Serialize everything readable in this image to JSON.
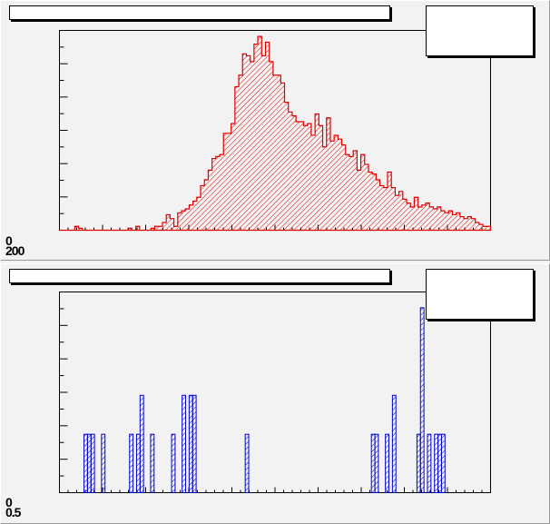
{
  "colors": {
    "top_series": "#e00000",
    "bottom_series": "#0000cc",
    "frame": "#000000",
    "pad_background": "#f2f2f2"
  },
  "pads": [
    {
      "title": "",
      "stats": "",
      "axis_labels": [
        "0",
        "200"
      ]
    },
    {
      "title": "",
      "stats": "",
      "axis_labels": [
        "0",
        "0.5"
      ]
    }
  ],
  "chart_data": [
    {
      "type": "bar",
      "title": "",
      "fill_pattern": "diagonal-hatch",
      "color": "#e00000",
      "ylim": [
        0,
        1
      ],
      "values": [
        0,
        0,
        0,
        0,
        0.02,
        0.01,
        0,
        0,
        0,
        0,
        0,
        0,
        0,
        0,
        0,
        0,
        0,
        0,
        0.01,
        0,
        0.02,
        0,
        0,
        0,
        0.01,
        0.02,
        0.02,
        0.04,
        0.08,
        0.06,
        0.02,
        0.09,
        0.1,
        0.11,
        0.13,
        0.15,
        0.17,
        0.23,
        0.26,
        0.31,
        0.37,
        0.38,
        0.39,
        0.5,
        0.5,
        0.55,
        0.74,
        0.8,
        0.91,
        0.9,
        0.87,
        0.96,
        1.0,
        0.9,
        0.97,
        0.87,
        0.8,
        0.8,
        0.76,
        0.66,
        0.61,
        0.59,
        0.56,
        0.56,
        0.54,
        0.55,
        0.49,
        0.6,
        0.54,
        0.43,
        0.58,
        0.46,
        0.49,
        0.47,
        0.44,
        0.39,
        0.38,
        0.41,
        0.31,
        0.39,
        0.34,
        0.3,
        0.29,
        0.26,
        0.23,
        0.22,
        0.3,
        0.22,
        0.18,
        0.2,
        0.16,
        0.14,
        0.12,
        0.17,
        0.12,
        0.13,
        0.14,
        0.12,
        0.11,
        0.12,
        0.1,
        0.09,
        0.1,
        0.08,
        0.09,
        0.07,
        0.06,
        0.07,
        0.06,
        0.04,
        0.03,
        0.02,
        0.02
      ]
    },
    {
      "type": "bar",
      "title": "",
      "fill_pattern": "diagonal-hatch",
      "color": "#0000cc",
      "ylim": [
        0,
        1
      ],
      "values": [
        0,
        0,
        0,
        0,
        0,
        0,
        0,
        0.3,
        0.3,
        0.3,
        0,
        0,
        0.3,
        0,
        0,
        0,
        0,
        0,
        0,
        0,
        0.3,
        0,
        0.3,
        0.5,
        0,
        0,
        0.3,
        0,
        0,
        0,
        0,
        0,
        0.3,
        0,
        0,
        0.5,
        0,
        0.5,
        0.5,
        0,
        0,
        0,
        0,
        0,
        0,
        0,
        0,
        0,
        0,
        0,
        0,
        0,
        0,
        0.3,
        0,
        0,
        0,
        0,
        0,
        0,
        0,
        0,
        0,
        0,
        0,
        0,
        0,
        0,
        0,
        0,
        0,
        0,
        0,
        0,
        0,
        0,
        0,
        0,
        0,
        0,
        0,
        0,
        0,
        0,
        0,
        0,
        0,
        0,
        0,
        0.3,
        0.3,
        0,
        0,
        0.3,
        0,
        0.5,
        0,
        0,
        0,
        0,
        0,
        0,
        0.3,
        0.95,
        0,
        0.3,
        0,
        0.3,
        0.3,
        0.3,
        0,
        0,
        0,
        0,
        0,
        0,
        0,
        0,
        0,
        0,
        0,
        0,
        0
      ]
    }
  ]
}
